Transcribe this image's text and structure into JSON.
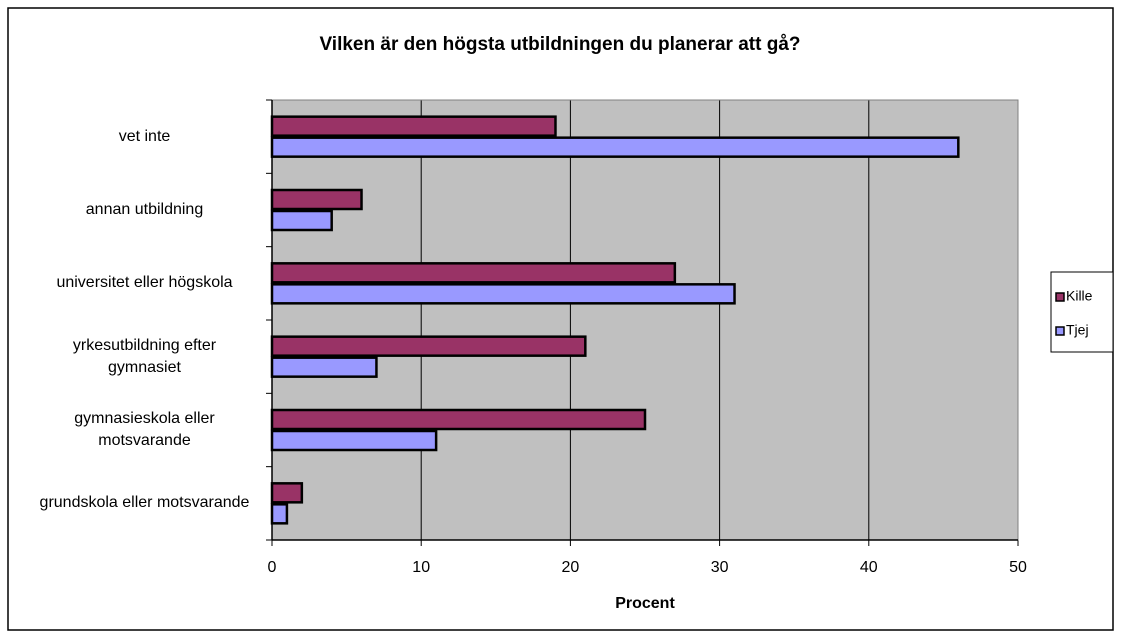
{
  "chart_data": {
    "type": "bar",
    "orientation": "horizontal",
    "title": "Vilken är den högsta utbildningen du planerar att gå?",
    "x_label": "Procent",
    "categories": [
      "vet inte",
      "annan utbildning",
      "universitet eller högskola",
      "yrkesutbildning efter gymnasiet",
      "gymnasieskola eller motsvarande",
      "grundskola eller motsvarande"
    ],
    "series": [
      {
        "name": "Kille",
        "color": "#993366",
        "values": [
          19,
          6,
          27,
          21,
          25,
          2
        ]
      },
      {
        "name": "Tjej",
        "color": "#9999ff",
        "values": [
          46,
          4,
          31,
          7,
          11,
          1
        ]
      }
    ],
    "xlim": [
      0,
      50
    ],
    "xticks": [
      0,
      10,
      20,
      30,
      40,
      50
    ],
    "grid": true,
    "legend": "right"
  }
}
